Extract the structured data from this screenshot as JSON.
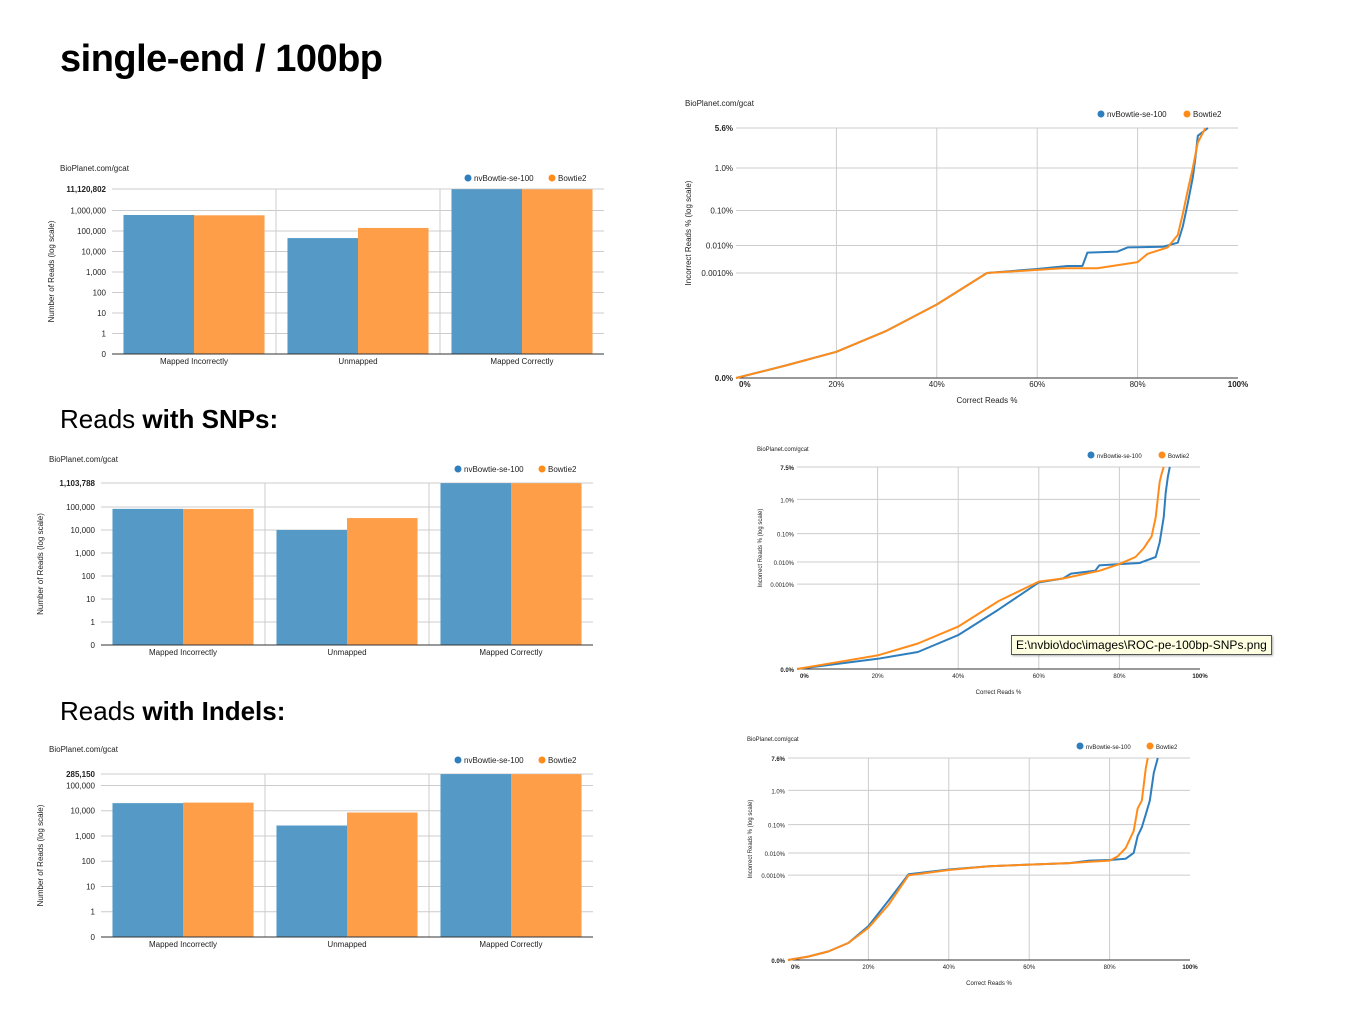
{
  "page": {
    "title": "single-end / 100bp",
    "sections": [
      {
        "prefix": "Reads ",
        "bold": "with SNPs:"
      },
      {
        "prefix": "Reads ",
        "bold": "with Indels:"
      }
    ],
    "tooltip": "E:\\nvbio\\doc\\images\\ROC-pe-100bp-SNPs.png"
  },
  "colors": {
    "blue": "#2f7ebd",
    "orange": "#ff8c1a",
    "bar_blue": "#5599c7",
    "bar_orange": "#ff9e48"
  },
  "chart_data": [
    {
      "type": "bar",
      "source": "BioPlanet.com/gcat",
      "ylabel": "Number of Reads (log scale)",
      "log_scale": true,
      "categories": [
        "Mapped Incorrectly",
        "Unmapped",
        "Mapped Correctly"
      ],
      "yticks": [
        "0",
        "1",
        "10",
        "100",
        "1,000",
        "10,000",
        "100,000",
        "1,000,000"
      ],
      "ymax_label": "11,120,802",
      "ymax": 11120802,
      "series": [
        {
          "name": "nvBowtie-se-100",
          "values": [
            600000,
            45000,
            10900000
          ]
        },
        {
          "name": "Bowtie2",
          "values": [
            580000,
            140000,
            10700000
          ]
        }
      ]
    },
    {
      "type": "line",
      "source": "BioPlanet.com/gcat",
      "xlabel": "Correct Reads %",
      "ylabel": "Incorrect Reads % (log scale)",
      "xticks": [
        "0%",
        "20%",
        "40%",
        "60%",
        "80%",
        "100%"
      ],
      "yticks": [
        "0.0%",
        "0.0010%",
        "0.010%",
        "0.10%",
        "1.0%",
        "5.6%"
      ],
      "series": [
        {
          "name": "nvBowtie-se-100",
          "x": [
            0,
            10,
            20,
            30,
            40,
            50,
            60,
            66,
            69,
            70,
            76,
            78,
            85,
            88,
            89,
            90,
            91,
            91.5,
            92,
            94
          ],
          "y": [
            0,
            0.00012,
            0.00025,
            0.00045,
            0.0007,
            0.001,
            0.0014,
            0.0018,
            0.0018,
            0.0055,
            0.006,
            0.0085,
            0.009,
            0.012,
            0.035,
            0.15,
            0.6,
            1.5,
            4,
            5.6
          ]
        },
        {
          "name": "Bowtie2",
          "x": [
            0,
            10,
            20,
            30,
            40,
            50,
            60,
            65,
            72,
            80,
            82,
            86,
            88,
            89,
            90,
            91,
            92,
            93.5
          ],
          "y": [
            0,
            0.00012,
            0.00025,
            0.00045,
            0.0007,
            0.001,
            0.0013,
            0.0015,
            0.0015,
            0.0025,
            0.005,
            0.0085,
            0.02,
            0.08,
            0.3,
            1,
            3,
            5.6
          ]
        }
      ]
    },
    {
      "type": "bar",
      "source": "BioPlanet.com/gcat",
      "ylabel": "Number of Reads (log scale)",
      "log_scale": true,
      "categories": [
        "Mapped Incorrectly",
        "Unmapped",
        "Mapped Correctly"
      ],
      "yticks": [
        "0",
        "1",
        "10",
        "100",
        "1,000",
        "10,000",
        "100,000"
      ],
      "ymax_label": "1,103,788",
      "ymax": 1103788,
      "series": [
        {
          "name": "nvBowtie-se-100",
          "values": [
            83000,
            10000,
            1090000
          ]
        },
        {
          "name": "Bowtie2",
          "values": [
            82000,
            33000,
            1080000
          ]
        }
      ]
    },
    {
      "type": "line",
      "source": "BioPlanet.com/gcat",
      "xlabel": "Correct Reads %",
      "ylabel": "Incorrect Reads % (log scale)",
      "xticks": [
        "0%",
        "20%",
        "40%",
        "60%",
        "80%",
        "100%"
      ],
      "yticks": [
        "0.0%",
        "0.0010%",
        "0.010%",
        "0.10%",
        "1.0%",
        "7.5%"
      ],
      "series": [
        {
          "name": "nvBowtie-se-100",
          "x": [
            0,
            10,
            20,
            30,
            40,
            50,
            60,
            66,
            68,
            74,
            75,
            80,
            85,
            89,
            90,
            91,
            91.5,
            92,
            92.5
          ],
          "y": [
            0,
            6e-05,
            0.00012,
            0.0002,
            0.0004,
            0.0007,
            0.0012,
            0.0018,
            0.003,
            0.004,
            0.007,
            0.008,
            0.009,
            0.015,
            0.05,
            0.3,
            1.5,
            4,
            7.5
          ]
        },
        {
          "name": "Bowtie2",
          "x": [
            0,
            10,
            20,
            30,
            40,
            50,
            60,
            66,
            75,
            80,
            84,
            86,
            88,
            89,
            89.5,
            90,
            90.5,
            91
          ],
          "y": [
            0,
            8e-05,
            0.00016,
            0.0003,
            0.0005,
            0.0008,
            0.0013,
            0.0018,
            0.004,
            0.008,
            0.015,
            0.03,
            0.08,
            0.3,
            1,
            3,
            5,
            7.5
          ]
        }
      ]
    },
    {
      "type": "bar",
      "source": "BioPlanet.com/gcat",
      "ylabel": "Number of Reads (log scale)",
      "log_scale": true,
      "categories": [
        "Mapped Incorrectly",
        "Unmapped",
        "Mapped Correctly"
      ],
      "yticks": [
        "0",
        "1",
        "10",
        "100",
        "1,000",
        "10,000",
        "100,000"
      ],
      "ymax_label": "285,150",
      "ymax": 285150,
      "series": [
        {
          "name": "nvBowtie-se-100",
          "values": [
            20000,
            2600,
            283000
          ]
        },
        {
          "name": "Bowtie2",
          "values": [
            21000,
            8500,
            282000
          ]
        }
      ]
    },
    {
      "type": "line",
      "source": "BioPlanet.com/gcat",
      "xlabel": "Correct Reads %",
      "ylabel": "Incorrect Reads % (log scale)",
      "xticks": [
        "0%",
        "20%",
        "40%",
        "60%",
        "80%",
        "100%"
      ],
      "yticks": [
        "0.0%",
        "0.0010%",
        "0.010%",
        "0.10%",
        "1.0%",
        "7.6%"
      ],
      "series": [
        {
          "name": "nvBowtie-se-100",
          "x": [
            0,
            5,
            10,
            15,
            20,
            25,
            30,
            40,
            50,
            60,
            70,
            75,
            80,
            84,
            86,
            87,
            88,
            89,
            90,
            91,
            92
          ],
          "y": [
            0,
            4e-05,
            0.0001,
            0.0002,
            0.0004,
            0.0007,
            0.0011,
            0.0018,
            0.0025,
            0.003,
            0.0035,
            0.0045,
            0.0048,
            0.0055,
            0.01,
            0.04,
            0.08,
            0.2,
            0.5,
            3,
            7.6
          ]
        },
        {
          "name": "Bowtie2",
          "x": [
            0,
            5,
            10,
            15,
            20,
            25,
            30,
            40,
            50,
            60,
            70,
            75,
            80,
            82,
            84,
            86,
            87,
            88,
            89,
            89.5
          ],
          "y": [
            0,
            4e-05,
            0.0001,
            0.0002,
            0.00038,
            0.00065,
            0.001,
            0.0017,
            0.0025,
            0.003,
            0.0035,
            0.004,
            0.0045,
            0.007,
            0.015,
            0.06,
            0.3,
            0.5,
            4,
            7.6
          ]
        }
      ]
    }
  ]
}
